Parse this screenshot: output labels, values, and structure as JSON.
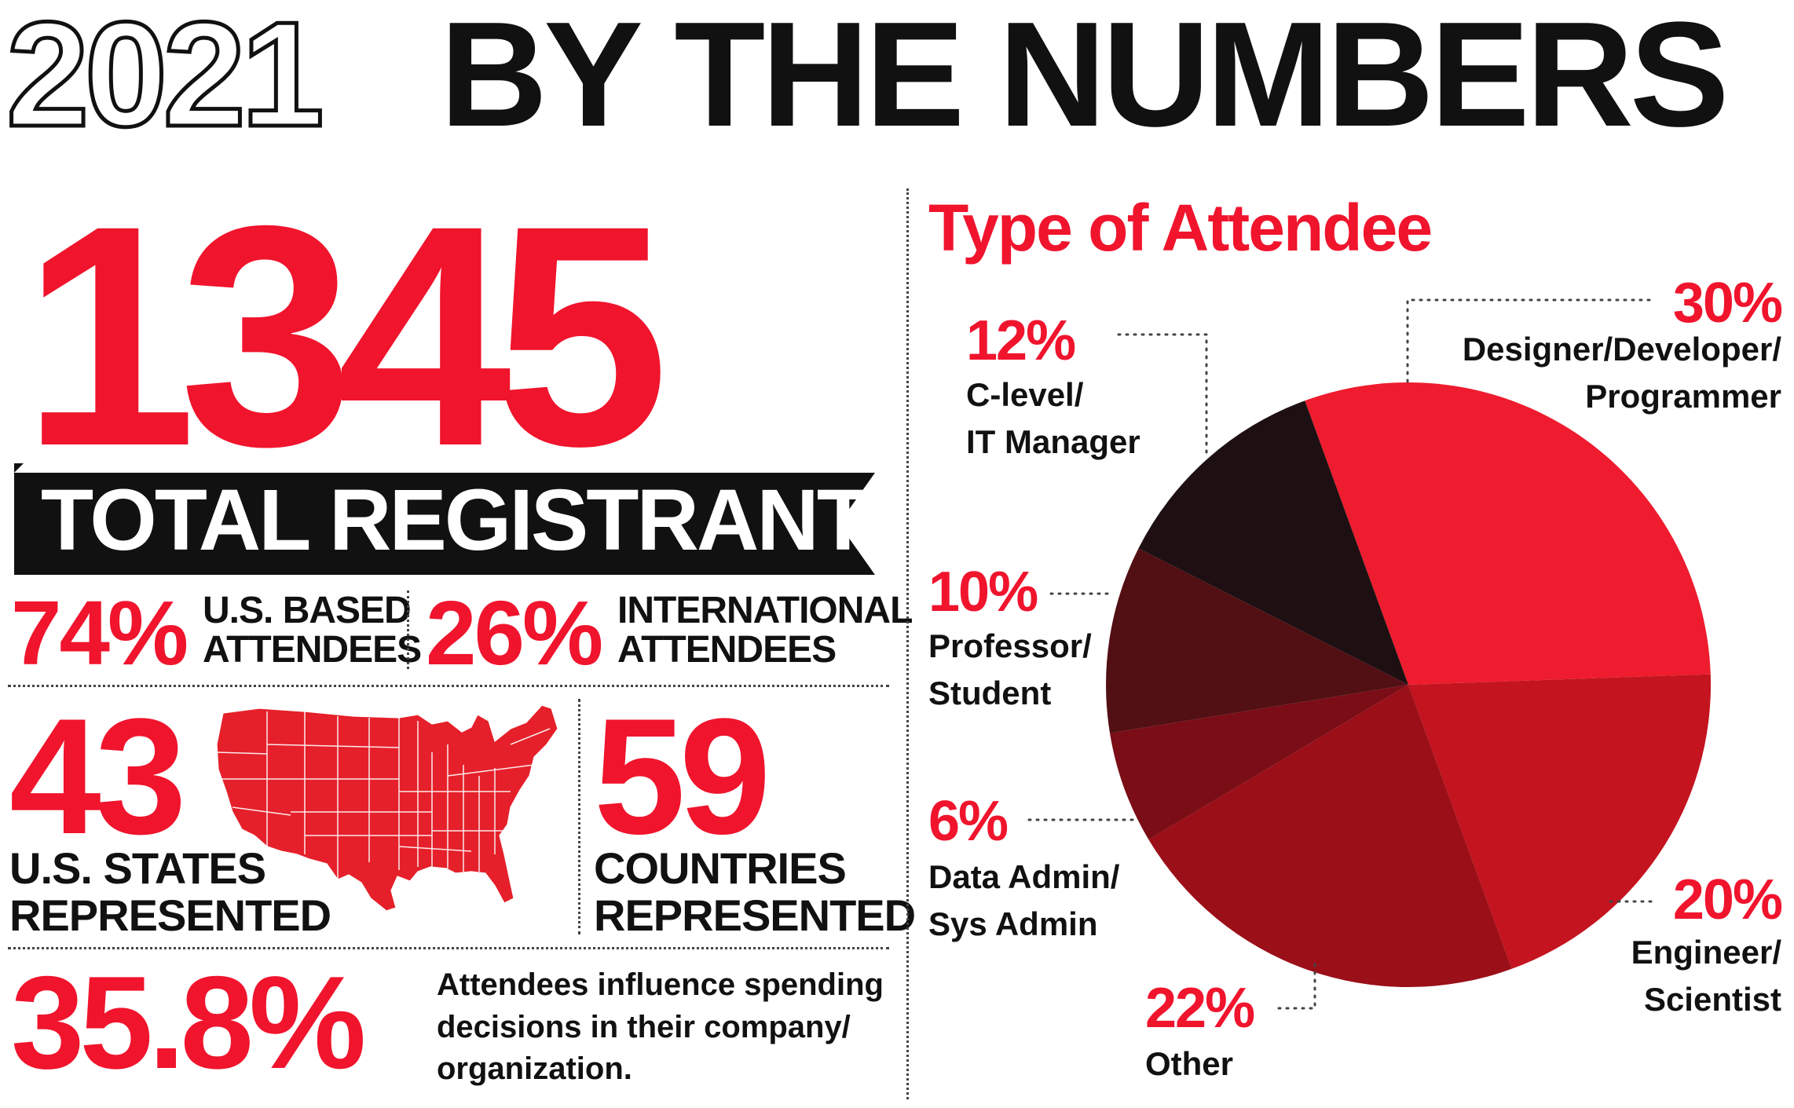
{
  "header": {
    "year": "2021",
    "title": "BY THE NUMBERS"
  },
  "registrants": {
    "total": "1345",
    "label": "TOTAL REGISTRANTS"
  },
  "us_based": {
    "pct": "74%",
    "label_line1": "U.S. BASED",
    "label_line2": "ATTENDEES"
  },
  "international": {
    "pct": "26%",
    "label_line1": "INTERNATIONAL",
    "label_line2": "ATTENDEES"
  },
  "states": {
    "value": "43",
    "label_line1": "U.S. STATES",
    "label_line2": "REPRESENTED"
  },
  "countries": {
    "value": "59",
    "label_line1": "COUNTRIES",
    "label_line2": "REPRESENTED"
  },
  "influence": {
    "value": "35.8%",
    "description": "Attendees influence spending decisions in their company/ organization."
  },
  "colors": {
    "red": "#f0142d",
    "slice_designer": "#ee1c2e",
    "slice_engineer": "#c4141f",
    "slice_other": "#9b0f18",
    "slice_data": "#7a0d16",
    "slice_professor": "#520f14",
    "slice_clevel": "#1e1012"
  },
  "chart_data": {
    "type": "pie",
    "title": "Type of Attendee",
    "unit": "%",
    "slices": [
      {
        "label": "Designer/Developer/ Programmer",
        "line1": "Designer/Developer/",
        "line2": "Programmer",
        "value": 30,
        "display": "30%"
      },
      {
        "label": "Engineer/ Scientist",
        "line1": "Engineer/",
        "line2": "Scientist",
        "value": 20,
        "display": "20%"
      },
      {
        "label": "Other",
        "line1": "Other",
        "line2": "",
        "value": 22,
        "display": "22%"
      },
      {
        "label": "Data Admin/ Sys Admin",
        "line1": "Data Admin/",
        "line2": "Sys Admin",
        "value": 6,
        "display": "6%"
      },
      {
        "label": "Professor/ Student",
        "line1": "Professor/",
        "line2": "Student",
        "value": 10,
        "display": "10%"
      },
      {
        "label": "C-level/ IT Manager",
        "line1": "C-level/",
        "line2": "IT Manager",
        "value": 12,
        "display": "12%"
      }
    ]
  }
}
